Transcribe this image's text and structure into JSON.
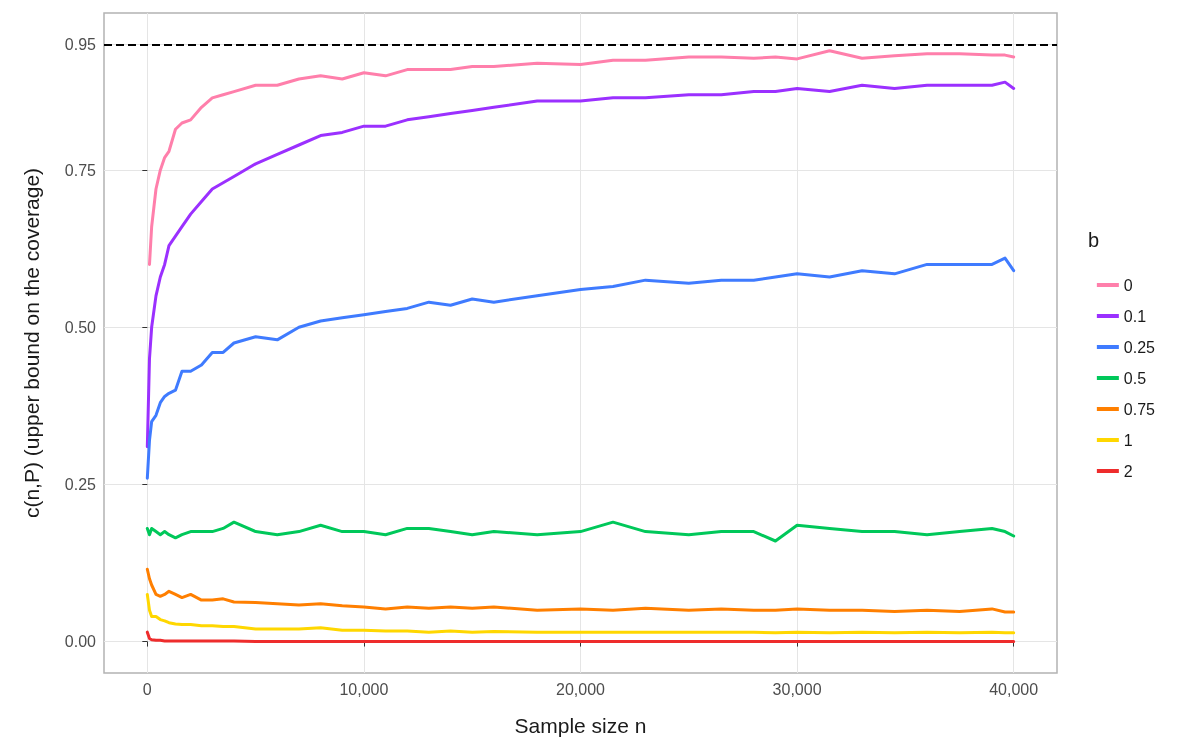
{
  "chart_data": {
    "type": "line",
    "xlabel": "Sample size n",
    "ylabel": "c(n,P) (upper bound on the coverage)",
    "legend_title": "b",
    "legend": "right",
    "grid": true,
    "marker": "none",
    "line_style": "solid",
    "xlim": [
      -2000,
      42000
    ],
    "ylim": [
      -0.05,
      1.0
    ],
    "xticks": [
      0,
      {
        "value": 10000,
        "label": "10,000"
      },
      {
        "value": 20000,
        "label": "20,000"
      },
      {
        "value": 30000,
        "label": "30,000"
      },
      {
        "value": 40000,
        "label": "40,000"
      }
    ],
    "yticks": [
      {
        "value": 0,
        "label": "0.00"
      },
      {
        "value": 0.25,
        "label": "0.25"
      },
      {
        "value": 0.5,
        "label": "0.50"
      },
      {
        "value": 0.75,
        "label": "0.75"
      },
      {
        "value": 0.95,
        "label": "0.95"
      }
    ],
    "ref_lines": [
      {
        "axis": "y",
        "value": 0.95,
        "color": "#000000",
        "line_style": "dashed"
      }
    ],
    "x": [
      0,
      100,
      200,
      400,
      600,
      800,
      1000,
      1300,
      1600,
      2000,
      2500,
      3000,
      3500,
      4000,
      5000,
      6000,
      7000,
      8000,
      9000,
      10000,
      11000,
      12000,
      13000,
      14000,
      15000,
      16000,
      18000,
      20000,
      21500,
      23000,
      25000,
      26500,
      28000,
      29000,
      30000,
      31500,
      33000,
      34500,
      36000,
      37500,
      39000,
      39600,
      40000
    ],
    "series": [
      {
        "name": "0",
        "color": "#ff7fab",
        "values": [
          null,
          0.6,
          0.66,
          0.72,
          0.75,
          0.77,
          0.78,
          0.815,
          0.825,
          0.83,
          0.85,
          0.865,
          0.87,
          0.875,
          0.885,
          0.885,
          0.895,
          0.9,
          0.895,
          0.905,
          0.9,
          0.91,
          0.91,
          0.91,
          0.915,
          0.915,
          0.92,
          0.918,
          0.925,
          0.925,
          0.93,
          0.93,
          0.928,
          0.93,
          0.927,
          0.94,
          0.928,
          0.932,
          0.935,
          0.935,
          0.933,
          0.933,
          0.93
        ]
      },
      {
        "name": "0.1",
        "color": "#9b30ff",
        "values": [
          0.31,
          0.45,
          0.5,
          0.55,
          0.58,
          0.6,
          0.63,
          0.645,
          0.66,
          0.68,
          0.7,
          0.72,
          0.73,
          0.74,
          0.76,
          0.775,
          0.79,
          0.805,
          0.81,
          0.82,
          0.82,
          0.83,
          0.835,
          0.84,
          0.845,
          0.85,
          0.86,
          0.86,
          0.865,
          0.865,
          0.87,
          0.87,
          0.875,
          0.875,
          0.88,
          0.875,
          0.885,
          0.88,
          0.885,
          0.885,
          0.885,
          0.89,
          0.88
        ]
      },
      {
        "name": "0.25",
        "color": "#3f7bff",
        "values": [
          0.26,
          0.32,
          0.35,
          0.36,
          0.38,
          0.39,
          0.395,
          0.4,
          0.43,
          0.43,
          0.44,
          0.46,
          0.46,
          0.475,
          0.485,
          0.48,
          0.5,
          0.51,
          0.515,
          0.52,
          0.525,
          0.53,
          0.54,
          0.535,
          0.545,
          0.54,
          0.55,
          0.56,
          0.565,
          0.575,
          0.57,
          0.575,
          0.575,
          0.58,
          0.585,
          0.58,
          0.59,
          0.585,
          0.6,
          0.6,
          0.6,
          0.61,
          0.59
        ]
      },
      {
        "name": "0.5",
        "color": "#00c85a",
        "values": [
          0.18,
          0.17,
          0.18,
          0.175,
          0.17,
          0.175,
          0.17,
          0.165,
          0.17,
          0.175,
          0.175,
          0.175,
          0.18,
          0.19,
          0.175,
          0.17,
          0.175,
          0.185,
          0.175,
          0.175,
          0.17,
          0.18,
          0.18,
          0.175,
          0.17,
          0.175,
          0.17,
          0.175,
          0.19,
          0.175,
          0.17,
          0.175,
          0.175,
          0.16,
          0.185,
          0.18,
          0.175,
          0.175,
          0.17,
          0.175,
          0.18,
          0.175,
          0.168
        ]
      },
      {
        "name": "0.75",
        "color": "#ff7f00",
        "values": [
          0.115,
          0.1,
          0.09,
          0.075,
          0.072,
          0.075,
          0.08,
          0.075,
          0.07,
          0.075,
          0.066,
          0.066,
          0.068,
          0.063,
          0.062,
          0.06,
          0.058,
          0.06,
          0.057,
          0.055,
          0.052,
          0.055,
          0.053,
          0.055,
          0.053,
          0.055,
          0.05,
          0.052,
          0.05,
          0.053,
          0.05,
          0.052,
          0.05,
          0.05,
          0.052,
          0.05,
          0.05,
          0.048,
          0.05,
          0.048,
          0.052,
          0.047,
          0.047
        ]
      },
      {
        "name": "1",
        "color": "#ffd700",
        "values": [
          0.075,
          0.05,
          0.04,
          0.04,
          0.035,
          0.033,
          0.03,
          0.028,
          0.027,
          0.027,
          0.025,
          0.025,
          0.024,
          0.024,
          0.02,
          0.02,
          0.02,
          0.022,
          0.018,
          0.018,
          0.017,
          0.017,
          0.015,
          0.017,
          0.015,
          0.016,
          0.015,
          0.015,
          0.015,
          0.015,
          0.015,
          0.015,
          0.015,
          0.014,
          0.015,
          0.014,
          0.015,
          0.014,
          0.015,
          0.014,
          0.015,
          0.014,
          0.014
        ]
      },
      {
        "name": "2",
        "color": "#ee2c2c",
        "values": [
          0.015,
          0.005,
          0.003,
          0.002,
          0.002,
          0.001,
          0.001,
          0.001,
          0.001,
          0.001,
          0.001,
          0.001,
          0.001,
          0.001,
          0,
          0,
          0,
          0,
          0,
          0,
          0,
          0,
          0,
          0,
          0,
          0,
          0,
          0,
          0,
          0,
          0,
          0,
          0,
          0,
          0,
          0,
          0,
          0,
          0,
          0,
          0,
          0,
          0
        ]
      }
    ]
  }
}
